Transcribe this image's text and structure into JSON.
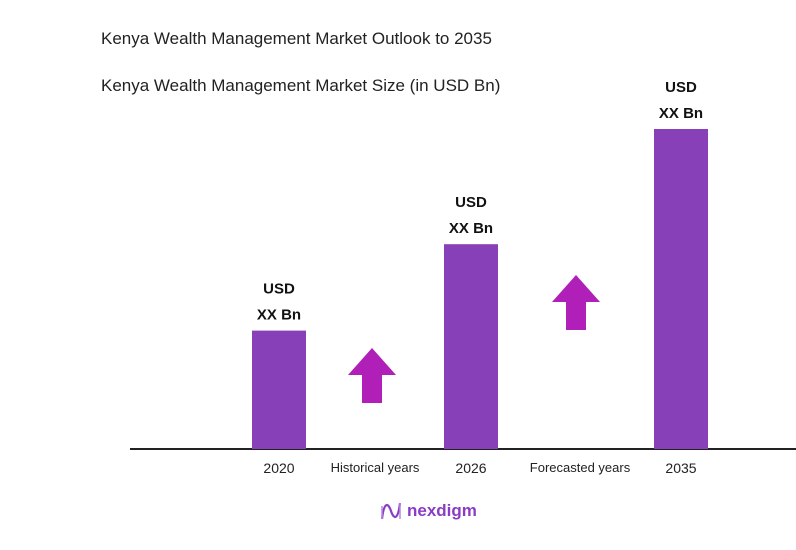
{
  "title": "Kenya Wealth Management Market Outlook to 2035",
  "subtitle": "Kenya Wealth Management Market Size (in USD Bn)",
  "logo_text": "nexdigm",
  "colors": {
    "bar": "#8740b8",
    "arrow": "#b01fb8",
    "axis": "#222222",
    "logo": "#8b3cc4"
  },
  "chart_data": {
    "type": "bar",
    "title": "Kenya Wealth Management Market Size (in USD Bn)",
    "categories": [
      "2020",
      "2026",
      "2035"
    ],
    "values_relative": [
      37,
      64,
      100
    ],
    "data_labels": [
      [
        "USD",
        "XX Bn"
      ],
      [
        "USD",
        "XX Bn"
      ],
      [
        "USD",
        "XX Bn"
      ]
    ],
    "annotations": [
      {
        "text": "Historical years",
        "between": [
          "2020",
          "2026"
        ],
        "icon": "up-arrow-icon"
      },
      {
        "text": "Forecasted years",
        "between": [
          "2026",
          "2035"
        ],
        "icon": "up-arrow-icon"
      }
    ],
    "yaxis_visible": false,
    "grid": false,
    "legend": "none"
  }
}
